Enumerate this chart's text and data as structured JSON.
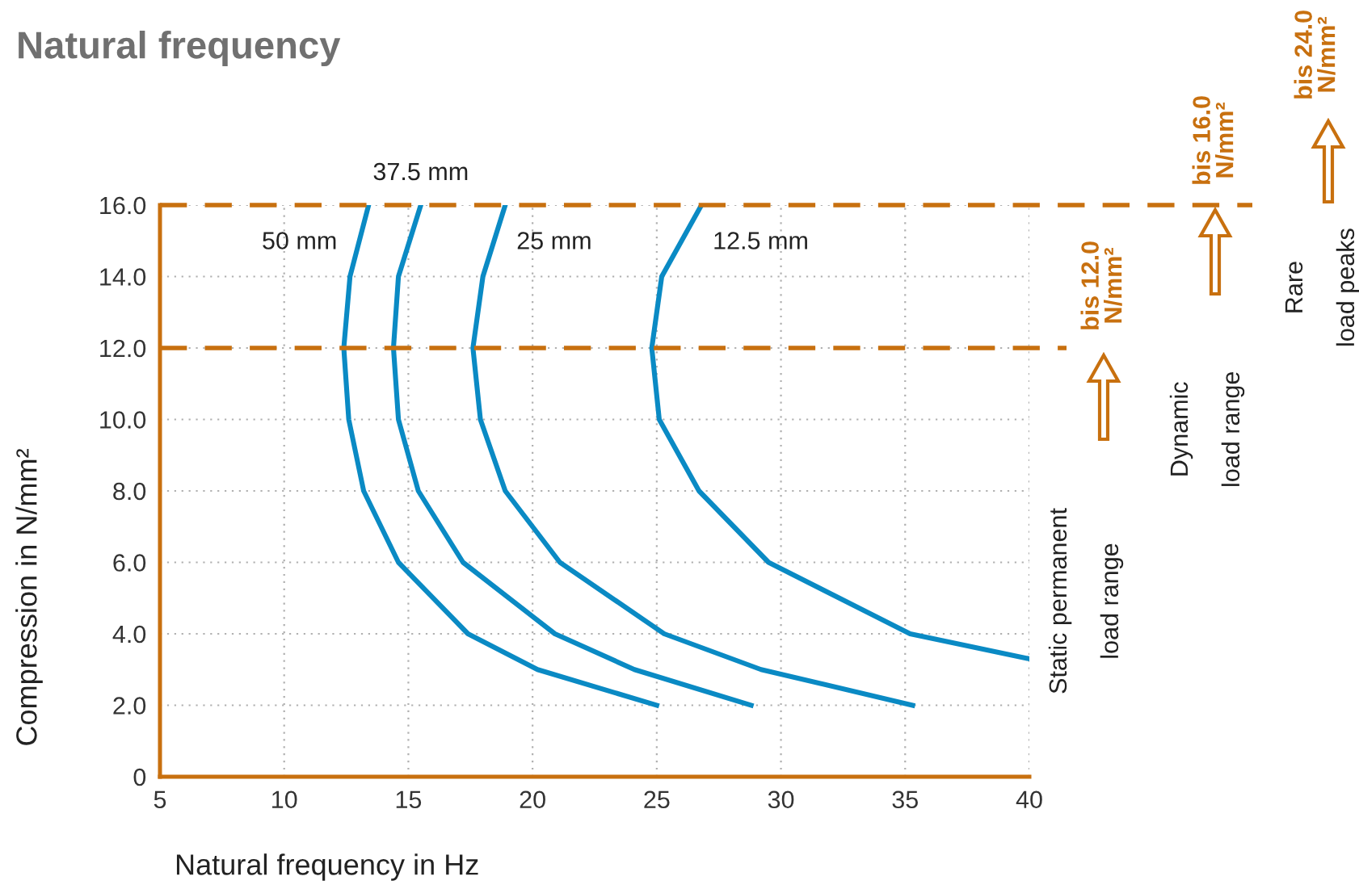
{
  "chart_data": {
    "type": "line",
    "title": "Natural frequency",
    "xlabel": "Natural frequency in Hz",
    "ylabel": "Compression in N/mm²",
    "xlim": [
      5,
      40
    ],
    "xticks": [
      5,
      10,
      15,
      20,
      25,
      30,
      35,
      40
    ],
    "ylim": [
      0,
      16
    ],
    "yticks": [
      0,
      {
        "value": 2,
        "label": "2.0"
      },
      {
        "value": 4,
        "label": "4.0"
      },
      {
        "value": 6,
        "label": "6.0"
      },
      {
        "value": 8,
        "label": "8.0"
      },
      {
        "value": 10,
        "label": "10.0"
      },
      {
        "value": 12,
        "label": "12.0"
      },
      {
        "value": 14,
        "label": "14.0"
      },
      {
        "value": 16,
        "label": "16.0"
      }
    ],
    "grid": true,
    "marker": "none",
    "line_style": "solid",
    "series": [
      {
        "name": "50 mm",
        "color": "#0a8ac4",
        "x": [
          13.4,
          12.65,
          12.4,
          12.6,
          13.2,
          14.6,
          17.4,
          20.2,
          25.0
        ],
        "values": [
          16,
          14,
          12,
          10,
          8,
          6,
          4,
          3,
          2
        ]
      },
      {
        "name": "37.5 mm",
        "color": "#0a8ac4",
        "x": [
          15.5,
          14.6,
          14.4,
          14.6,
          15.4,
          17.2,
          20.9,
          24.1,
          28.8
        ],
        "values": [
          16,
          14,
          12,
          10,
          8,
          6,
          4,
          3,
          2
        ]
      },
      {
        "name": "25 mm",
        "color": "#0a8ac4",
        "x": [
          18.9,
          18.0,
          17.6,
          17.9,
          18.9,
          21.1,
          25.3,
          29.2,
          35.3
        ],
        "values": [
          16,
          14,
          12,
          10,
          8,
          6,
          4,
          3,
          2
        ]
      },
      {
        "name": "12.5 mm",
        "color": "#0a8ac4",
        "x": [
          26.8,
          25.2,
          24.8,
          25.1,
          26.7,
          29.5,
          35.2,
          40.0
        ],
        "values": [
          16,
          14,
          12,
          10,
          8,
          6,
          4,
          3.3
        ]
      }
    ],
    "ref_lines": [
      {
        "axis": "y",
        "value": 12,
        "label": "bis 12.0\nN/mm²",
        "color": "#c8700f",
        "line_style": "dashed"
      },
      {
        "axis": "y",
        "value": 16,
        "label": "bis 16.0\nN/mm²",
        "color": "#c8700f",
        "line_style": "dashed"
      }
    ],
    "annotations": [
      "bis 24.0\nN/mm²",
      "Static permanent\nload range",
      "Dynamic\nload range",
      "Rare\nload peaks"
    ]
  }
}
